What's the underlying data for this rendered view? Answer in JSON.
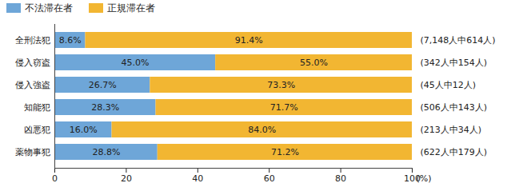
{
  "chart_data": {
    "type": "bar",
    "orientation": "horizontal",
    "stacked": true,
    "data_labels": true,
    "legend": "top-left",
    "grid": false,
    "categories": [
      "全刑法犯",
      "侵入窃盗",
      "侵入強盗",
      "知能犯",
      "凶悪犯",
      "薬物事犯"
    ],
    "series": [
      {
        "name": "不法滞在者",
        "color": "#6ea6d8",
        "values": [
          8.6,
          45.0,
          26.7,
          28.3,
          16.0,
          28.8
        ],
        "value_labels": [
          "8.6%",
          "45.0%",
          "26.7%",
          "28.3%",
          "16.0%",
          "28.8%"
        ]
      },
      {
        "name": "正規滞在者",
        "color": "#f2b632",
        "values": [
          91.4,
          55.0,
          73.3,
          71.7,
          84.0,
          71.2
        ],
        "value_labels": [
          "91.4%",
          "55.0%",
          "73.3%",
          "71.7%",
          "84.0%",
          "71.2%"
        ]
      }
    ],
    "annotations": [
      "(7,148人中614人)",
      "(342人中154人)",
      "(45人中12人)",
      "(506人中143人)",
      "(213人中34人)",
      "(622人中179人)"
    ],
    "x_label": "(%)",
    "xlim": [
      0,
      100
    ],
    "xticks": [
      0,
      20,
      40,
      60,
      80,
      100
    ]
  }
}
